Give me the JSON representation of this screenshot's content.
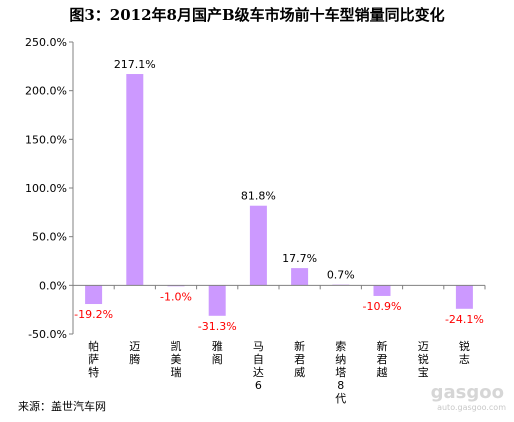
{
  "title": "图3：2012年8月国产B级车市场前十车型销量同比变化",
  "source": "来源：盖世汽车网",
  "watermark": {
    "logo_text": "gasgoo",
    "url": "auto.gasgoo.com"
  },
  "chart_data": {
    "type": "bar",
    "title": "图3：2012年8月国产B级车市场前十车型销量同比变化",
    "xlabel": "",
    "ylabel": "",
    "categories": [
      "帕萨特",
      "迈腾",
      "凯美瑞",
      "雅阁",
      "马自达6",
      "新君威",
      "索纳塔8代",
      "新君越",
      "迈锐宝",
      "锐志"
    ],
    "values": [
      -19.2,
      217.1,
      -1.0,
      -31.3,
      81.8,
      17.7,
      0.7,
      -10.9,
      0,
      -24.1
    ],
    "value_labels": [
      "-19.2%",
      "217.1%",
      "-1.0%",
      "-31.3%",
      "81.8%",
      "17.7%",
      "0.7%",
      "-10.9%",
      "",
      "-24.1%"
    ],
    "ylim": [
      -50,
      250
    ],
    "yticks": [
      250,
      200,
      150,
      100,
      50,
      0,
      -50
    ],
    "ytick_labels": [
      "250.0%",
      "200.0%",
      "150.0%",
      "100.0%",
      "50.0%",
      "0.0%",
      "-50.0%"
    ],
    "grid": false,
    "legend": "none",
    "colors": {
      "bar": "#cc99ff",
      "positive_label": "#000000",
      "negative_label": "#ff0000",
      "axis": "#808080"
    }
  }
}
